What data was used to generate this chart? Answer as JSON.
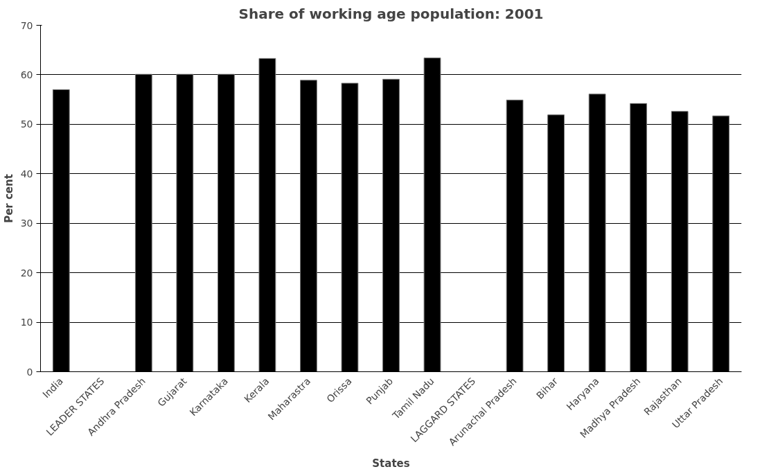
{
  "chart_data": {
    "type": "bar",
    "title": "Share of working age population: 2001",
    "xlabel": "States",
    "ylabel": "Per cent",
    "categories": [
      "India",
      "LEADER STATES",
      "Andhra Pradesh",
      "Gujarat",
      "Karnataka",
      "Kerala",
      "Maharastra",
      "Orissa",
      "Punjab",
      "Tamil Nadu",
      "LAGGARD STATES",
      "Arunachal Pradesh",
      "Bihar",
      "Haryana",
      "Madhya Pradesh",
      "Rajasthan",
      "Uttar Pradesh"
    ],
    "values": [
      57.0,
      null,
      60.1,
      60.1,
      60.1,
      63.3,
      58.9,
      58.3,
      59.1,
      63.4,
      null,
      54.9,
      51.9,
      56.1,
      54.2,
      52.6,
      51.7
    ],
    "color": "#000000",
    "ylim": [
      0,
      70
    ],
    "yticks": [
      0,
      10,
      20,
      30,
      40,
      50,
      60,
      70
    ],
    "grid": "y"
  }
}
